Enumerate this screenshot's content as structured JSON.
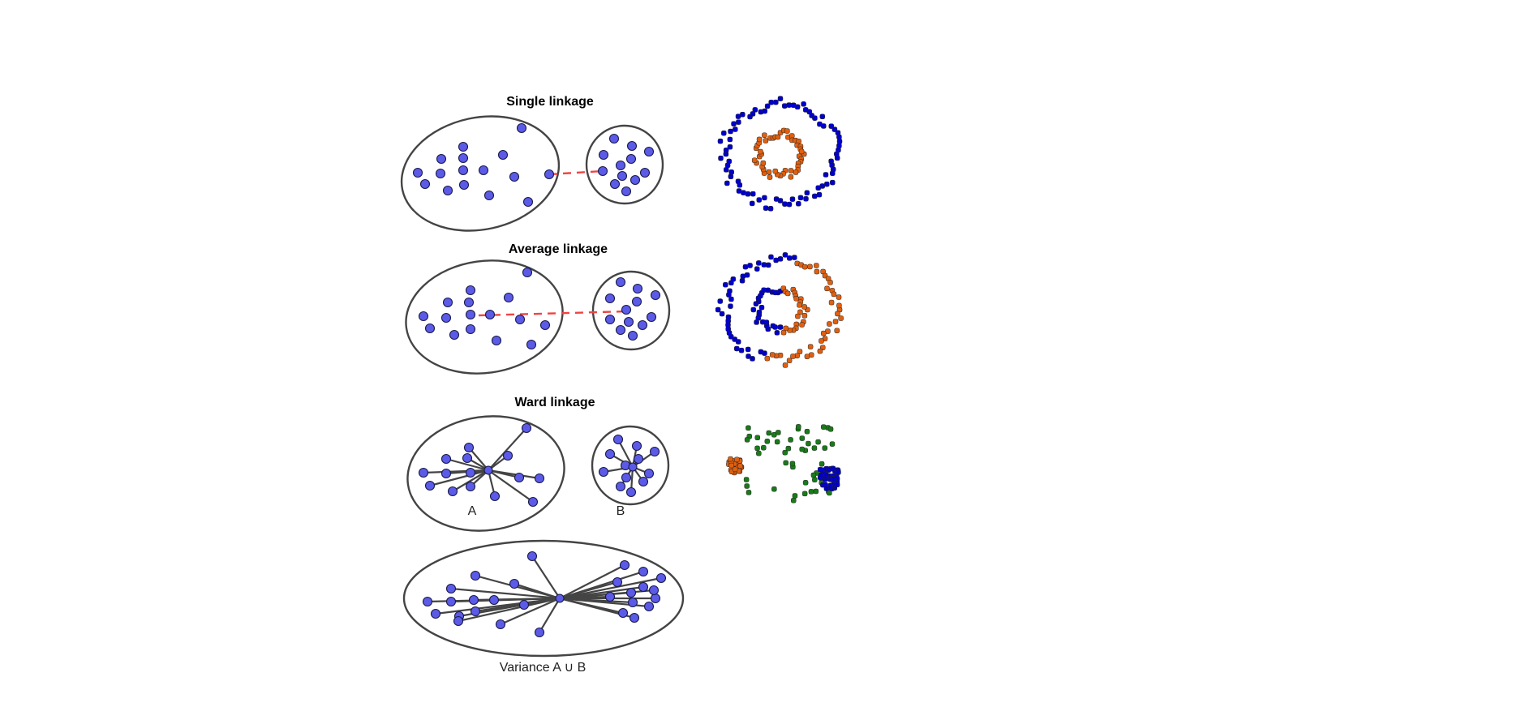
{
  "panels": {
    "single": {
      "title": "Single linkage"
    },
    "average": {
      "title": "Average linkage"
    },
    "ward": {
      "title": "Ward linkage",
      "label_a": "A",
      "label_b": "B"
    },
    "merged": {
      "label": "Variance A ∪ B"
    }
  },
  "colors": {
    "point_fill": "#5b5be8",
    "link_line": "#ee4444",
    "scatter_blue": "#0000cc",
    "scatter_orange": "#e06010",
    "scatter_green": "#1a7a1a"
  }
}
